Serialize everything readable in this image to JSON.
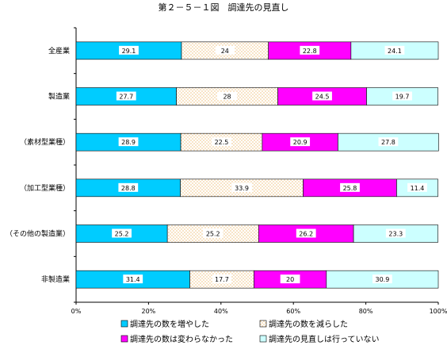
{
  "chart_data": {
    "type": "bar",
    "orientation": "horizontal",
    "stacked": "percent",
    "title": "第２－５－１図　調達先の見直し",
    "categories": [
      "全産業",
      "製造業",
      "（素材型業種）",
      "（加工型業種）",
      "（その他の製造業）",
      "非製造業"
    ],
    "series": [
      {
        "name": "調達先の数を増やした",
        "values": [
          29.1,
          27.7,
          28.9,
          28.8,
          25.2,
          31.4
        ],
        "color": "#00CCFF",
        "pattern": "solid"
      },
      {
        "name": "調達先の数を減らした",
        "values": [
          24.0,
          28.0,
          22.5,
          33.9,
          25.2,
          17.7
        ],
        "color": "#FFFFFF",
        "pattern": "dots"
      },
      {
        "name": "調達先の数は変わらなかった",
        "values": [
          22.8,
          24.5,
          20.9,
          25.8,
          26.2,
          20.0
        ],
        "color": "#FF00FF",
        "pattern": "solid"
      },
      {
        "name": "調達先の見直しは行っていない",
        "values": [
          24.1,
          19.7,
          27.8,
          11.4,
          23.3,
          30.9
        ],
        "color": "#CCFFFF",
        "pattern": "solid"
      }
    ],
    "x_ticks": [
      "0%",
      "20%",
      "40%",
      "60%",
      "80%",
      "100%"
    ],
    "xlim": [
      0,
      100
    ],
    "grid": false,
    "legend_position": "bottom"
  }
}
